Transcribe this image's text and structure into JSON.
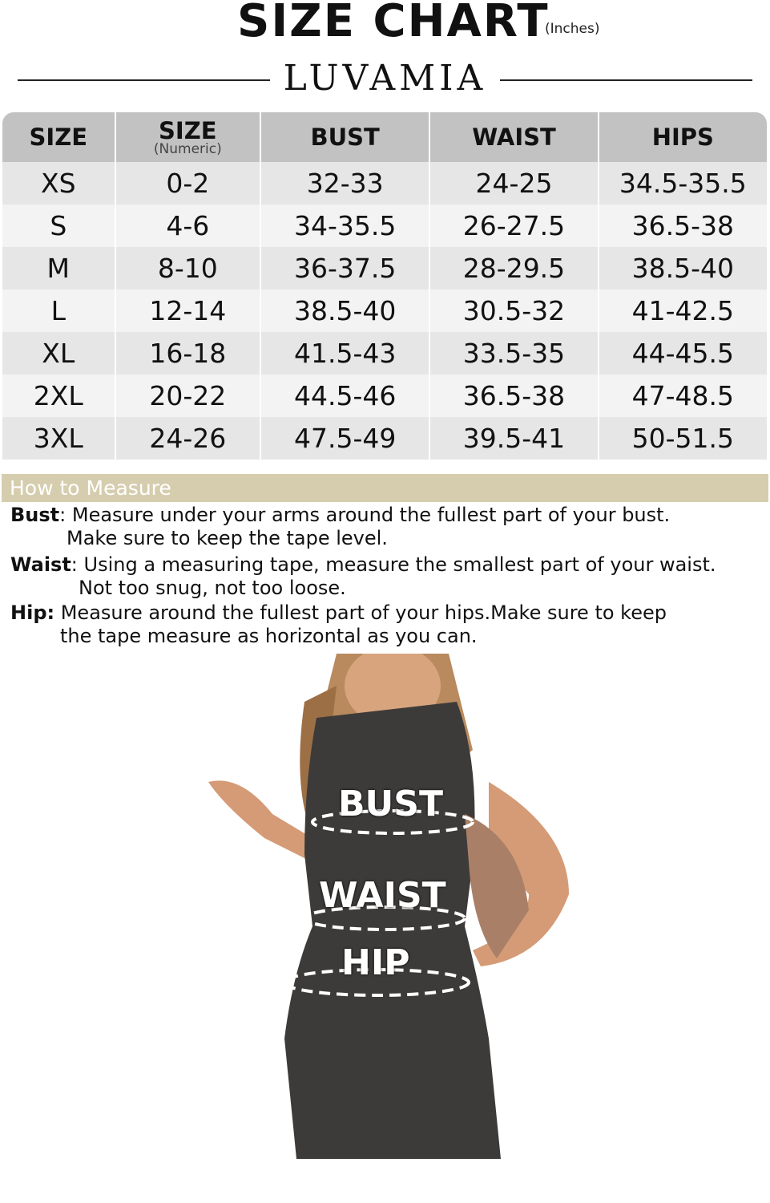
{
  "header": {
    "title": "SIZE CHART",
    "unit": "(Inches)",
    "brand": "LUVAMIA"
  },
  "table": {
    "columns": [
      {
        "label": "SIZE",
        "sub": ""
      },
      {
        "label": "SIZE",
        "sub": "(Numeric)"
      },
      {
        "label": "BUST",
        "sub": ""
      },
      {
        "label": "WAIST",
        "sub": ""
      },
      {
        "label": "HIPS",
        "sub": ""
      }
    ],
    "rows": [
      [
        "XS",
        "0-2",
        "32-33",
        "24-25",
        "34.5-35.5"
      ],
      [
        "S",
        "4-6",
        "34-35.5",
        "26-27.5",
        "36.5-38"
      ],
      [
        "M",
        "8-10",
        "36-37.5",
        "28-29.5",
        "38.5-40"
      ],
      [
        "L",
        "12-14",
        "38.5-40",
        "30.5-32",
        "41-42.5"
      ],
      [
        "XL",
        "16-18",
        "41.5-43",
        "33.5-35",
        "44-45.5"
      ],
      [
        "2XL",
        "20-22",
        "44.5-46",
        "36.5-38",
        "47-48.5"
      ],
      [
        "3XL",
        "24-26",
        "47.5-49",
        "39.5-41",
        "50-51.5"
      ]
    ]
  },
  "measure": {
    "heading": "How to Measure",
    "items": [
      {
        "term": "Bust",
        "line1": ": Measure under your arms around the fullest part of your bust.",
        "line2": "Make sure to keep the tape level."
      },
      {
        "term": "Waist",
        "line1": ": Using a measuring tape, measure the smallest part of your waist.",
        "line2": "Not too snug, not too loose."
      },
      {
        "term": "Hip:",
        "line1": " Measure around the fullest part of your hips.Make sure to keep",
        "line2": "the tape measure as horizontal as you can."
      }
    ]
  },
  "photo": {
    "labels": {
      "bust": "BUST",
      "waist": "WAIST",
      "hip": "HIP"
    }
  },
  "colors": {
    "header_bg": "#c2c2c2",
    "row_odd": "#e6e6e6",
    "row_even": "#f3f3f3",
    "banner": "#d6cdae"
  }
}
